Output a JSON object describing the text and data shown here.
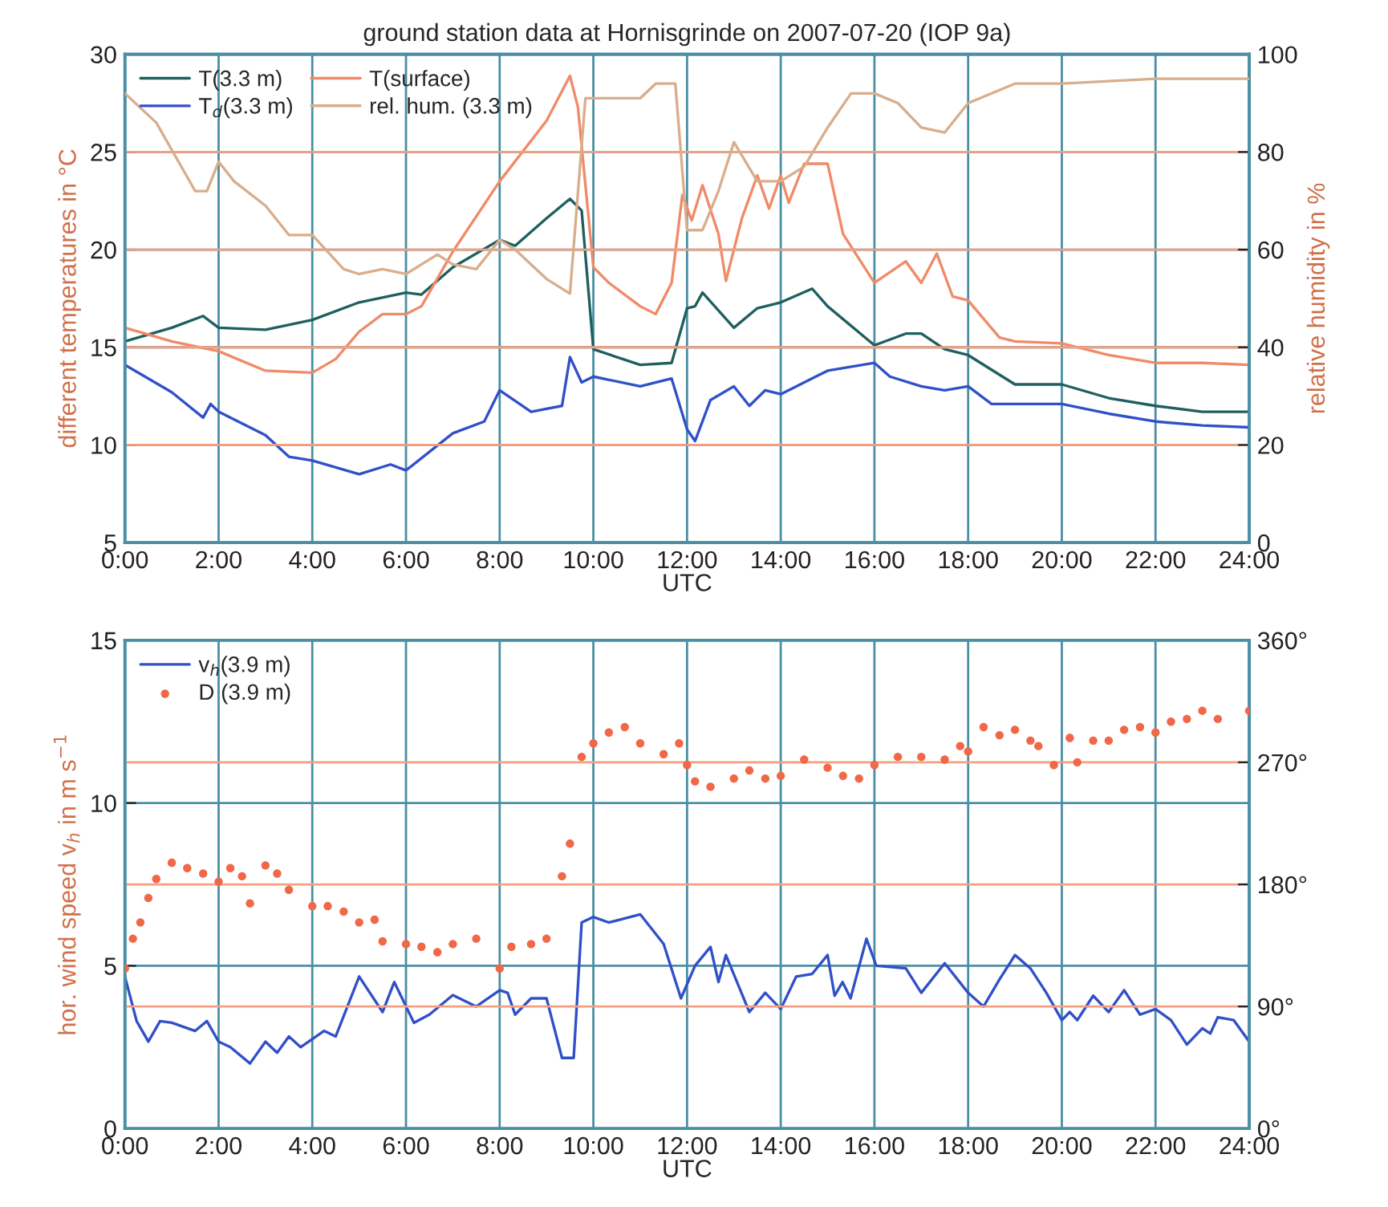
{
  "chart_data": [
    {
      "type": "line",
      "title": "ground station data at Hornisgrinde on 2007-07-20 (IOP 9a)",
      "xlabel": "UTC",
      "ylabel": "different temperatures in °C",
      "y2label": "relative humidity in %",
      "xlim": [
        0,
        24
      ],
      "xticks": [
        {
          "value": 0,
          "label": "0:00"
        },
        {
          "value": 2,
          "label": "2:00"
        },
        {
          "value": 4,
          "label": "4:00"
        },
        {
          "value": 6,
          "label": "6:00"
        },
        {
          "value": 8,
          "label": "8:00"
        },
        {
          "value": 10,
          "label": "10:00"
        },
        {
          "value": 12,
          "label": "12:00"
        },
        {
          "value": 14,
          "label": "14:00"
        },
        {
          "value": 16,
          "label": "16:00"
        },
        {
          "value": 18,
          "label": "18:00"
        },
        {
          "value": 20,
          "label": "20:00"
        },
        {
          "value": 22,
          "label": "22:00"
        },
        {
          "value": 24,
          "label": "24:00"
        }
      ],
      "ylim": [
        5,
        30
      ],
      "yticks": [
        5,
        10,
        15,
        20,
        25,
        30
      ],
      "y2lim": [
        0,
        100
      ],
      "y2ticks": [
        0,
        20,
        40,
        60,
        80,
        100
      ],
      "grid": true,
      "legend": "top left",
      "line_style": "solid",
      "marker": "none",
      "series": [
        {
          "name": "T(3.3 m)",
          "color": "#1f5f5f",
          "x": [
            0,
            1,
            1.67,
            2,
            3,
            4,
            5,
            6,
            6.33,
            7,
            8,
            8.33,
            9,
            9.5,
            9.75,
            10,
            11,
            11.67,
            12,
            12.17,
            12.33,
            13,
            13.5,
            14,
            14.67,
            15,
            16,
            16.67,
            17,
            17.5,
            18,
            19,
            20,
            21,
            22,
            23,
            24
          ],
          "values": [
            15.3,
            16.0,
            16.6,
            16.0,
            15.9,
            16.4,
            17.3,
            17.8,
            17.7,
            19.1,
            20.5,
            20.2,
            21.6,
            22.6,
            22.0,
            14.9,
            14.1,
            14.2,
            17.0,
            17.1,
            17.8,
            16.0,
            17.0,
            17.3,
            18.0,
            17.1,
            15.1,
            15.7,
            15.7,
            14.9,
            14.6,
            13.1,
            13.1,
            12.4,
            12.0,
            11.7,
            11.7
          ]
        },
        {
          "name": "T$_{d}$(3.3 m)",
          "color": "#3050c8",
          "x": [
            0,
            1,
            1.67,
            1.83,
            2,
            3,
            3.5,
            4,
            5,
            5.67,
            6,
            7,
            7.67,
            8,
            8.67,
            9.33,
            9.5,
            9.75,
            10,
            11,
            11.67,
            12,
            12.17,
            12.5,
            13,
            13.33,
            13.67,
            14,
            15,
            16,
            16.33,
            17,
            17.5,
            18,
            18.5,
            19,
            20,
            21,
            22,
            23,
            24
          ],
          "values": [
            14.1,
            12.7,
            11.4,
            12.1,
            11.7,
            10.5,
            9.4,
            9.2,
            8.5,
            9.0,
            8.7,
            10.6,
            11.2,
            12.8,
            11.7,
            12.0,
            14.5,
            13.2,
            13.5,
            13.0,
            13.4,
            10.8,
            10.2,
            12.3,
            13.0,
            12.0,
            12.8,
            12.6,
            13.8,
            14.2,
            13.5,
            13.0,
            12.8,
            13.0,
            12.1,
            12.1,
            12.1,
            11.6,
            11.2,
            11.0,
            10.9
          ]
        },
        {
          "name": "T(surface)",
          "color": "#f08a68",
          "x": [
            0,
            1,
            2,
            3,
            4,
            4.5,
            5,
            5.5,
            6,
            6.33,
            7,
            8,
            9,
            9.5,
            9.67,
            10,
            10.33,
            11,
            11.33,
            11.67,
            11.9,
            12.1,
            12.33,
            12.67,
            12.83,
            13.17,
            13.5,
            13.75,
            14,
            14.17,
            14.5,
            15,
            15.33,
            16,
            16.67,
            17,
            17.33,
            17.67,
            18,
            18.67,
            19,
            20,
            21,
            22,
            23,
            24
          ],
          "values": [
            16.0,
            15.3,
            14.8,
            13.8,
            13.7,
            14.4,
            15.8,
            16.7,
            16.7,
            17.1,
            19.9,
            23.5,
            26.6,
            28.9,
            27.3,
            19.1,
            18.3,
            17.1,
            16.7,
            18.3,
            22.8,
            21.5,
            23.3,
            20.8,
            18.4,
            21.6,
            23.8,
            22.1,
            23.8,
            22.4,
            24.4,
            24.4,
            20.8,
            18.3,
            19.4,
            18.3,
            19.8,
            17.6,
            17.4,
            15.5,
            15.3,
            15.2,
            14.6,
            14.2,
            14.2,
            14.1
          ]
        },
        {
          "name": "rel. hum. (3.3 m)",
          "color": "#d8ae8c",
          "axis": "y2",
          "x": [
            0,
            0.67,
            1.5,
            1.75,
            2,
            2.33,
            3,
            3.5,
            4,
            4.67,
            5,
            5.5,
            6,
            6.67,
            7,
            7.5,
            8,
            8.33,
            9,
            9.5,
            9.83,
            10,
            11,
            11.33,
            11.75,
            12,
            12.33,
            12.67,
            13,
            13.5,
            14,
            14.5,
            15,
            15.5,
            16,
            16.5,
            17,
            17.5,
            18,
            19,
            20,
            22,
            24
          ],
          "values": [
            92,
            86,
            72,
            72,
            78,
            74,
            69,
            63,
            63,
            56,
            55,
            56,
            55,
            59,
            57,
            56,
            62,
            60,
            54,
            51,
            91,
            91,
            91,
            94,
            94,
            64,
            64,
            72,
            82,
            74,
            74,
            77,
            85,
            92,
            92,
            90,
            85,
            84,
            90,
            94,
            94,
            95,
            95
          ]
        }
      ]
    },
    {
      "type": "line",
      "xlabel": "UTC",
      "ylabel": "hor. wind speed v$_{h}$ in m s$^{−1}$",
      "xlim": [
        0,
        24
      ],
      "xticks": [
        {
          "value": 0,
          "label": "0:00"
        },
        {
          "value": 2,
          "label": "2:00"
        },
        {
          "value": 4,
          "label": "4:00"
        },
        {
          "value": 6,
          "label": "6:00"
        },
        {
          "value": 8,
          "label": "8:00"
        },
        {
          "value": 10,
          "label": "10:00"
        },
        {
          "value": 12,
          "label": "12:00"
        },
        {
          "value": 14,
          "label": "14:00"
        },
        {
          "value": 16,
          "label": "16:00"
        },
        {
          "value": 18,
          "label": "18:00"
        },
        {
          "value": 20,
          "label": "20:00"
        },
        {
          "value": 22,
          "label": "22:00"
        },
        {
          "value": 24,
          "label": "24:00"
        }
      ],
      "ylim": [
        0,
        15
      ],
      "yticks": [
        0,
        5,
        10,
        15
      ],
      "y2lim": [
        0,
        360
      ],
      "y2ticks": [
        {
          "value": 0,
          "label": "0°"
        },
        {
          "value": 90,
          "label": "90°"
        },
        {
          "value": 180,
          "label": "180°"
        },
        {
          "value": 270,
          "label": "270°"
        },
        {
          "value": 360,
          "label": "360°"
        }
      ],
      "grid": true,
      "legend": "top left",
      "series": [
        {
          "name": "v$_{h}$(3.9 m)",
          "color": "#3050c8",
          "marker": "none",
          "x": [
            0,
            0.25,
            0.5,
            0.75,
            1,
            1.5,
            1.75,
            2,
            2.25,
            2.67,
            3,
            3.25,
            3.5,
            3.75,
            4.25,
            4.5,
            5,
            5.5,
            5.75,
            6.17,
            6.5,
            7,
            7.5,
            8,
            8.17,
            8.33,
            8.67,
            9,
            9.33,
            9.58,
            9.75,
            10,
            10.33,
            11,
            11.5,
            11.87,
            12.17,
            12.5,
            12.67,
            12.83,
            13.33,
            13.67,
            14,
            14.33,
            14.67,
            15,
            15.15,
            15.32,
            15.49,
            15.83,
            16.04,
            16.67,
            17,
            17.5,
            18,
            18.33,
            18.67,
            19,
            19.33,
            19.67,
            20,
            20.17,
            20.33,
            20.67,
            21,
            21.33,
            21.67,
            22,
            22.33,
            22.67,
            23,
            23.17,
            23.33,
            23.67,
            24
          ],
          "values": [
            4.67,
            3.3,
            2.67,
            3.3,
            3.25,
            3.0,
            3.3,
            2.67,
            2.5,
            2.0,
            2.67,
            2.33,
            2.83,
            2.5,
            3.0,
            2.83,
            4.67,
            3.58,
            4.5,
            3.25,
            3.5,
            4.1,
            3.75,
            4.25,
            4.17,
            3.5,
            4.0,
            4.0,
            2.17,
            2.17,
            6.33,
            6.5,
            6.33,
            6.58,
            5.67,
            4.0,
            5.0,
            5.58,
            4.5,
            5.33,
            3.58,
            4.17,
            3.67,
            4.67,
            4.75,
            5.33,
            4.08,
            4.5,
            4.0,
            5.83,
            5.0,
            4.92,
            4.17,
            5.08,
            4.17,
            3.75,
            4.58,
            5.33,
            4.92,
            4.17,
            3.33,
            3.58,
            3.33,
            4.08,
            3.58,
            4.25,
            3.5,
            3.67,
            3.33,
            2.58,
            3.08,
            2.92,
            3.42,
            3.33,
            2.67
          ]
        },
        {
          "name": "D (3.9 m)",
          "color": "#f06848",
          "type": "scatter",
          "marker": "circle",
          "axis": "y2",
          "x": [
            0,
            0.17,
            0.33,
            0.5,
            0.67,
            1,
            1.33,
            1.67,
            2,
            2.25,
            2.5,
            2.67,
            3,
            3.25,
            3.5,
            4,
            4.33,
            4.67,
            5,
            5.33,
            5.5,
            6,
            6.33,
            6.67,
            7,
            7.5,
            8,
            8.25,
            8.67,
            9,
            9.33,
            9.5,
            9.75,
            10,
            10.33,
            10.67,
            11,
            11.5,
            11.83,
            12,
            12.17,
            12.5,
            13,
            13.33,
            13.67,
            14,
            14.5,
            15,
            15.33,
            15.67,
            16,
            16.5,
            17,
            17.5,
            17.83,
            18,
            18.33,
            18.67,
            19,
            19.33,
            19.5,
            19.83,
            20.17,
            20.33,
            20.67,
            21,
            21.33,
            21.67,
            22,
            22.33,
            22.67,
            23,
            23.33,
            24
          ],
          "values": [
            118,
            140,
            152,
            170,
            184,
            196,
            192,
            188,
            182,
            192,
            186,
            166,
            194,
            188,
            176,
            164,
            164,
            160,
            152,
            154,
            138,
            136,
            134,
            130,
            136,
            140,
            118,
            134,
            136,
            140,
            186,
            210,
            274,
            284,
            292,
            296,
            284,
            276,
            284,
            268,
            256,
            252,
            258,
            264,
            258,
            260,
            272,
            266,
            260,
            258,
            268,
            274,
            274,
            272,
            282,
            278,
            296,
            290,
            294,
            286,
            282,
            268,
            288,
            270,
            286,
            286,
            294,
            296,
            292,
            300,
            302,
            308,
            302,
            308
          ]
        }
      ]
    }
  ]
}
